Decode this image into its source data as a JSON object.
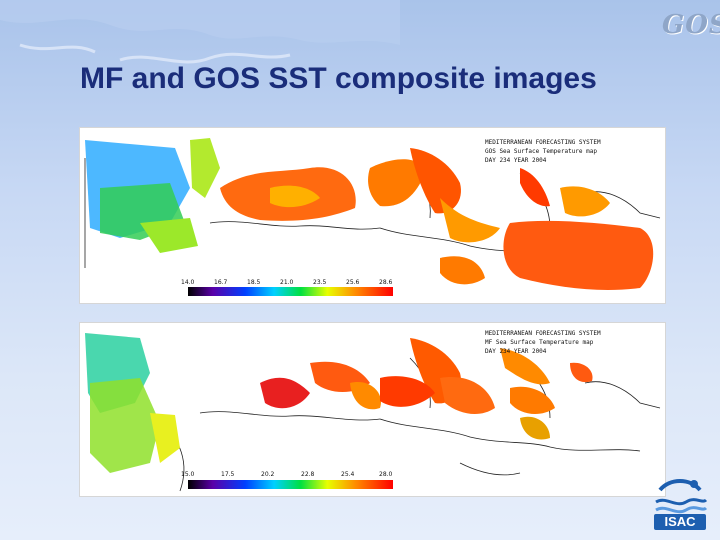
{
  "slide": {
    "title": "MF and GOS SST composite images",
    "logo_text": "GOS",
    "institute_text": "ISAC"
  },
  "maps": [
    {
      "header_line1": "MEDITERRANEAN FORECASTING SYSTEM",
      "header_line2": "GOS Sea Surface Temperature map",
      "header_line3": "DAY 234  YEAR 2004",
      "colorbar_ticks": [
        "14.0",
        "16.7",
        "18.5",
        "21.0",
        "23.5",
        "25.6",
        "28.6"
      ]
    },
    {
      "header_line1": "MEDITERRANEAN FORECASTING SYSTEM",
      "header_line2": "MF Sea Surface Temperature map",
      "header_line3": "DAY 234  YEAR 2004",
      "colorbar_ticks": [
        "15.0",
        "17.5",
        "20.2",
        "22.8",
        "25.4",
        "28.0"
      ]
    }
  ],
  "colors": {
    "title": "#1a2d7a",
    "background": "#c7d8f4",
    "isac_blue": "#1d5fb0"
  }
}
